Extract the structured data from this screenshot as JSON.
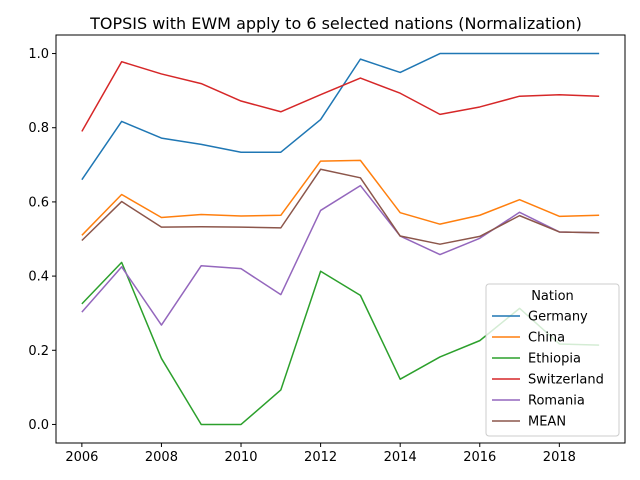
{
  "chart_data": {
    "type": "line",
    "title": "TOPSIS with EWM apply to 6 selected nations (Normalization)",
    "xlabel": "",
    "ylabel": "",
    "xlim": [
      2005.35,
      2019.65
    ],
    "ylim": [
      -0.05,
      1.05
    ],
    "xticks": [
      2006,
      2008,
      2010,
      2012,
      2014,
      2016,
      2018
    ],
    "yticks": [
      0.0,
      0.2,
      0.4,
      0.6,
      0.8,
      1.0
    ],
    "ytick_labels": [
      "0.0",
      "0.2",
      "0.4",
      "0.6",
      "0.8",
      "1.0"
    ],
    "grid": false,
    "legend": {
      "title": "Nation",
      "placement": "lower-right"
    },
    "x": [
      2006,
      2007,
      2008,
      2009,
      2010,
      2011,
      2012,
      2013,
      2014,
      2015,
      2016,
      2017,
      2018,
      2019
    ],
    "series": [
      {
        "name": "Germany",
        "color": "#1f77b4",
        "values": [
          0.66,
          0.817,
          0.772,
          0.755,
          0.734,
          0.734,
          0.822,
          0.985,
          0.949,
          1.0,
          1.0,
          1.0,
          1.0,
          1.0
        ]
      },
      {
        "name": "China",
        "color": "#ff7f0e",
        "values": [
          0.51,
          0.62,
          0.558,
          0.566,
          0.562,
          0.564,
          0.71,
          0.712,
          0.571,
          0.54,
          0.564,
          0.606,
          0.561,
          0.564
        ]
      },
      {
        "name": "Ethiopia",
        "color": "#2ca02c",
        "values": [
          0.325,
          0.437,
          0.178,
          0.0,
          0.0,
          0.093,
          0.413,
          0.348,
          0.122,
          0.182,
          0.226,
          0.313,
          0.217,
          0.214
        ]
      },
      {
        "name": "Switzerland",
        "color": "#d62728",
        "values": [
          0.79,
          0.978,
          0.945,
          0.919,
          0.872,
          0.843,
          0.889,
          0.934,
          0.893,
          0.836,
          0.856,
          0.885,
          0.889,
          0.885
        ]
      },
      {
        "name": "Romania",
        "color": "#9467bd",
        "values": [
          0.303,
          0.425,
          0.268,
          0.428,
          0.42,
          0.35,
          0.577,
          0.644,
          0.508,
          0.458,
          0.502,
          0.572,
          0.519,
          0.517
        ]
      },
      {
        "name": "MEAN",
        "color": "#8c564b",
        "values": [
          0.496,
          0.601,
          0.532,
          0.533,
          0.532,
          0.53,
          0.688,
          0.665,
          0.508,
          0.486,
          0.507,
          0.563,
          0.519,
          0.517
        ]
      }
    ]
  }
}
